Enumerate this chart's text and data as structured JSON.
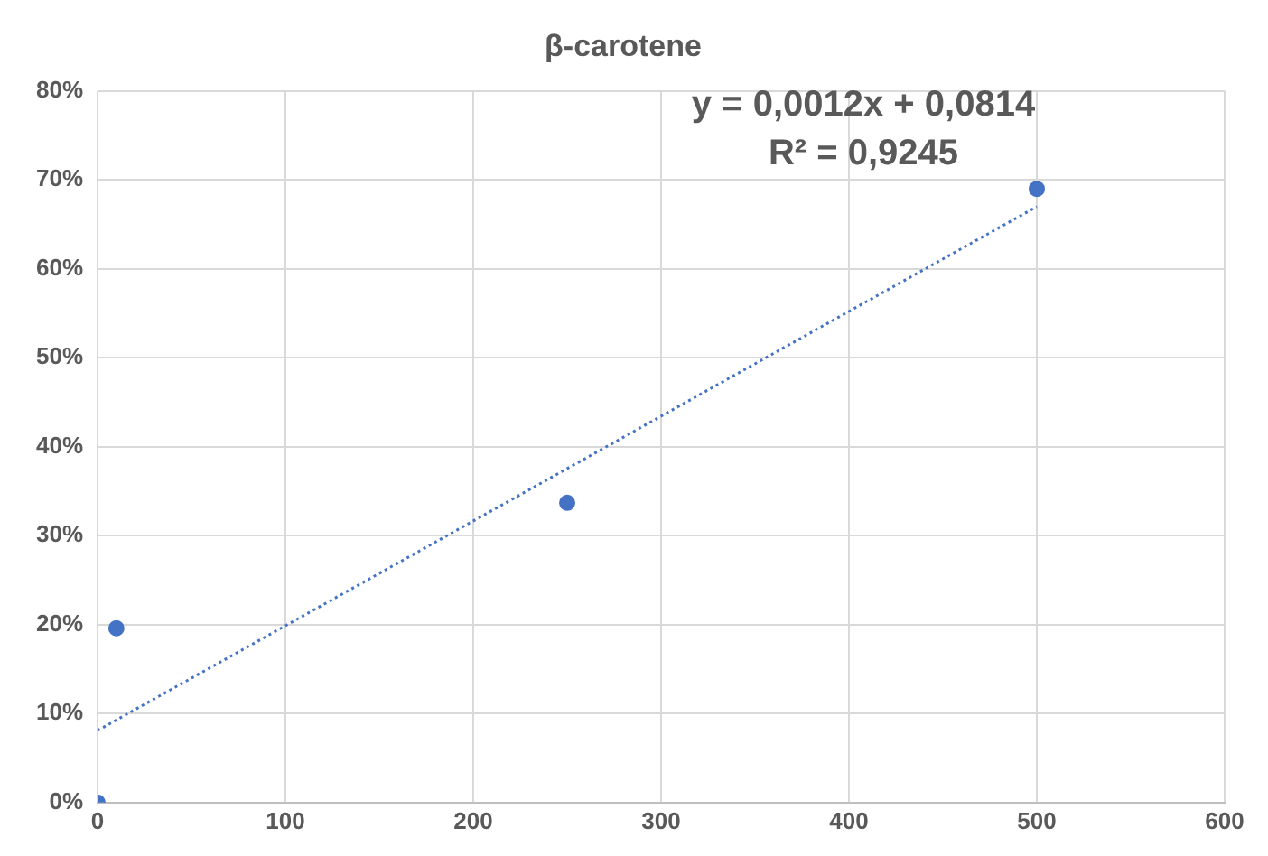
{
  "chart_data": {
    "type": "scatter",
    "title": "β-carotene",
    "x": [
      0,
      10,
      250,
      500
    ],
    "series": [
      {
        "color": "#4472c4",
        "marker": "circle",
        "values": [
          0,
          19.6,
          33.7,
          69
        ]
      },
      {
        "type": "line",
        "x": [
          0,
          500
        ],
        "color": "#4472c4",
        "line_style": "dotted",
        "marker": "none",
        "values": [
          8.1,
          67
        ]
      }
    ],
    "xlim": [
      0,
      600
    ],
    "xticks": [
      0,
      100,
      200,
      300,
      400,
      500,
      600
    ],
    "ylim": [
      0,
      80
    ],
    "yticks": [
      {
        "value": 0,
        "label": "0%"
      },
      {
        "value": 10,
        "label": "10%"
      },
      {
        "value": 20,
        "label": "20%"
      },
      {
        "value": 30,
        "label": "30%"
      },
      {
        "value": 40,
        "label": "40%"
      },
      {
        "value": 50,
        "label": "50%"
      },
      {
        "value": 60,
        "label": "60%"
      },
      {
        "value": 70,
        "label": "70%"
      },
      {
        "value": 80,
        "label": "80%"
      }
    ],
    "annotations": [
      "y = 0,0012x + 0,0814",
      "R² = 0,9245"
    ],
    "grid": true,
    "legend": false
  }
}
